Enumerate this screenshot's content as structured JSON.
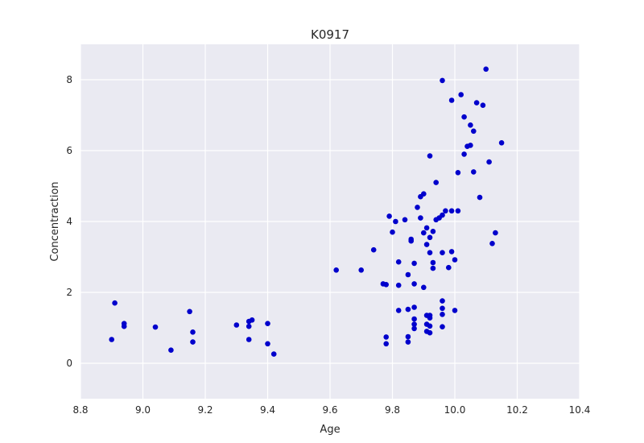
{
  "chart_data": {
    "type": "scatter",
    "title": "K0917",
    "xlabel": "Age",
    "ylabel": "Concentraction",
    "xlim": [
      8.8,
      10.4
    ],
    "ylim": [
      -1,
      9
    ],
    "xticks": [
      "8.8",
      "9.0",
      "9.2",
      "9.4",
      "9.6",
      "9.8",
      "10.0",
      "10.2",
      "10.4"
    ],
    "yticks": [
      "0",
      "2",
      "4",
      "6",
      "8"
    ],
    "grid": true,
    "background": "#eaeaf2",
    "point_color": "#0000cc",
    "series": [
      {
        "points": [
          [
            8.9,
            0.67
          ],
          [
            8.91,
            1.7
          ],
          [
            8.94,
            1.12
          ],
          [
            8.94,
            1.04
          ],
          [
            9.04,
            1.02
          ],
          [
            9.09,
            0.37
          ],
          [
            9.15,
            1.46
          ],
          [
            9.16,
            0.88
          ],
          [
            9.16,
            0.6
          ],
          [
            9.3,
            1.08
          ],
          [
            9.34,
            1.18
          ],
          [
            9.35,
            1.22
          ],
          [
            9.34,
            1.04
          ],
          [
            9.34,
            0.67
          ],
          [
            9.4,
            1.12
          ],
          [
            9.4,
            0.55
          ],
          [
            9.42,
            0.26
          ],
          [
            9.62,
            2.63
          ],
          [
            9.7,
            2.63
          ],
          [
            9.74,
            3.2
          ],
          [
            9.77,
            2.24
          ],
          [
            9.78,
            2.22
          ],
          [
            9.79,
            4.15
          ],
          [
            9.8,
            3.7
          ],
          [
            9.81,
            4.0
          ],
          [
            9.82,
            2.86
          ],
          [
            9.82,
            2.2
          ],
          [
            9.84,
            4.05
          ],
          [
            9.85,
            2.5
          ],
          [
            9.86,
            3.5
          ],
          [
            9.86,
            3.45
          ],
          [
            9.87,
            2.82
          ],
          [
            9.87,
            2.24
          ],
          [
            9.88,
            4.4
          ],
          [
            9.89,
            4.7
          ],
          [
            9.89,
            4.1
          ],
          [
            9.9,
            4.78
          ],
          [
            9.9,
            3.68
          ],
          [
            9.9,
            2.14
          ],
          [
            9.91,
            3.35
          ],
          [
            9.91,
            3.82
          ],
          [
            9.92,
            3.12
          ],
          [
            9.92,
            5.85
          ],
          [
            9.92,
            3.55
          ],
          [
            9.93,
            3.72
          ],
          [
            9.93,
            2.68
          ],
          [
            9.93,
            2.84
          ],
          [
            9.94,
            4.05
          ],
          [
            9.94,
            5.1
          ],
          [
            9.95,
            4.1
          ],
          [
            9.96,
            3.12
          ],
          [
            9.96,
            4.18
          ],
          [
            9.97,
            4.3
          ],
          [
            9.98,
            2.7
          ],
          [
            9.99,
            3.15
          ],
          [
            9.99,
            4.3
          ],
          [
            10.0,
            2.92
          ],
          [
            10.01,
            4.3
          ],
          [
            10.01,
            5.38
          ],
          [
            10.02,
            7.58
          ],
          [
            10.03,
            5.9
          ],
          [
            10.03,
            6.95
          ],
          [
            10.04,
            6.12
          ],
          [
            10.05,
            6.72
          ],
          [
            10.05,
            6.15
          ],
          [
            10.06,
            6.55
          ],
          [
            10.06,
            5.4
          ],
          [
            10.07,
            7.35
          ],
          [
            10.08,
            4.68
          ],
          [
            10.09,
            7.28
          ],
          [
            10.1,
            8.3
          ],
          [
            10.11,
            5.68
          ],
          [
            10.12,
            3.38
          ],
          [
            10.13,
            3.68
          ],
          [
            10.15,
            6.22
          ],
          [
            9.96,
            7.98
          ],
          [
            9.99,
            7.42
          ],
          [
            9.78,
            0.74
          ],
          [
            9.78,
            0.55
          ],
          [
            9.82,
            1.49
          ],
          [
            9.85,
            1.52
          ],
          [
            9.85,
            0.75
          ],
          [
            9.85,
            0.6
          ],
          [
            9.87,
            1.58
          ],
          [
            9.87,
            1.25
          ],
          [
            9.87,
            1.1
          ],
          [
            9.87,
            0.98
          ],
          [
            9.91,
            1.35
          ],
          [
            9.91,
            1.1
          ],
          [
            9.91,
            0.9
          ],
          [
            9.92,
            1.35
          ],
          [
            9.92,
            1.28
          ],
          [
            9.92,
            1.05
          ],
          [
            9.92,
            0.86
          ],
          [
            9.96,
            1.76
          ],
          [
            9.96,
            1.55
          ],
          [
            9.96,
            1.38
          ],
          [
            9.96,
            1.03
          ],
          [
            10.0,
            1.49
          ]
        ]
      }
    ]
  }
}
